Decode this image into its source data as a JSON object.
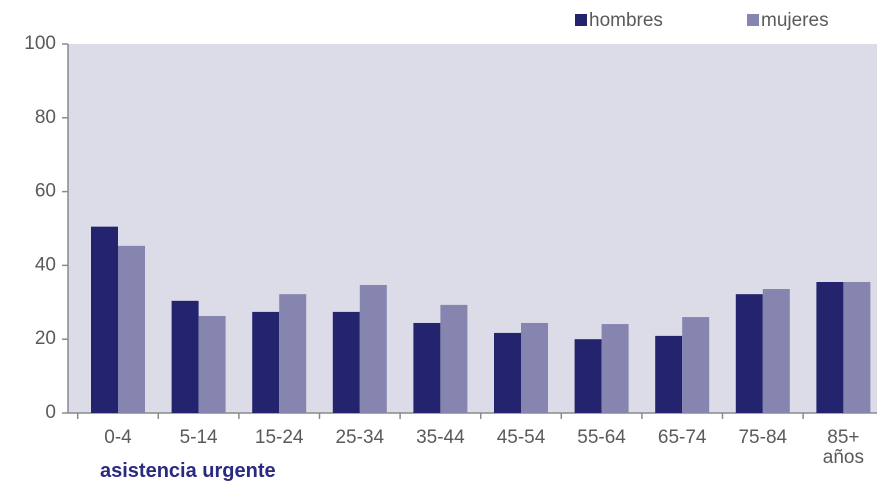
{
  "chart_data": {
    "type": "bar",
    "x_label": "asistencia urgente",
    "categories": [
      "0-4",
      "5-14",
      "15-24",
      "25-34",
      "35-44",
      "45-54",
      "55-64",
      "65-74",
      "75-84",
      "85+\naños"
    ],
    "series": [
      {
        "name": "hombres",
        "color": "#23236e",
        "values": [
          50.5,
          30.4,
          27.4,
          27.4,
          24.4,
          21.7,
          20,
          20.9,
          32.2,
          35.5
        ]
      },
      {
        "name": "mujeres",
        "color": "#8585b0",
        "values": [
          45.3,
          26.3,
          32.2,
          34.7,
          29.3,
          24.4,
          24.1,
          26,
          33.6,
          35.5
        ]
      }
    ],
    "ylim": [
      0,
      100
    ],
    "yticks": [
      0,
      20,
      40,
      60,
      80,
      100
    ],
    "legend": "top-right"
  }
}
